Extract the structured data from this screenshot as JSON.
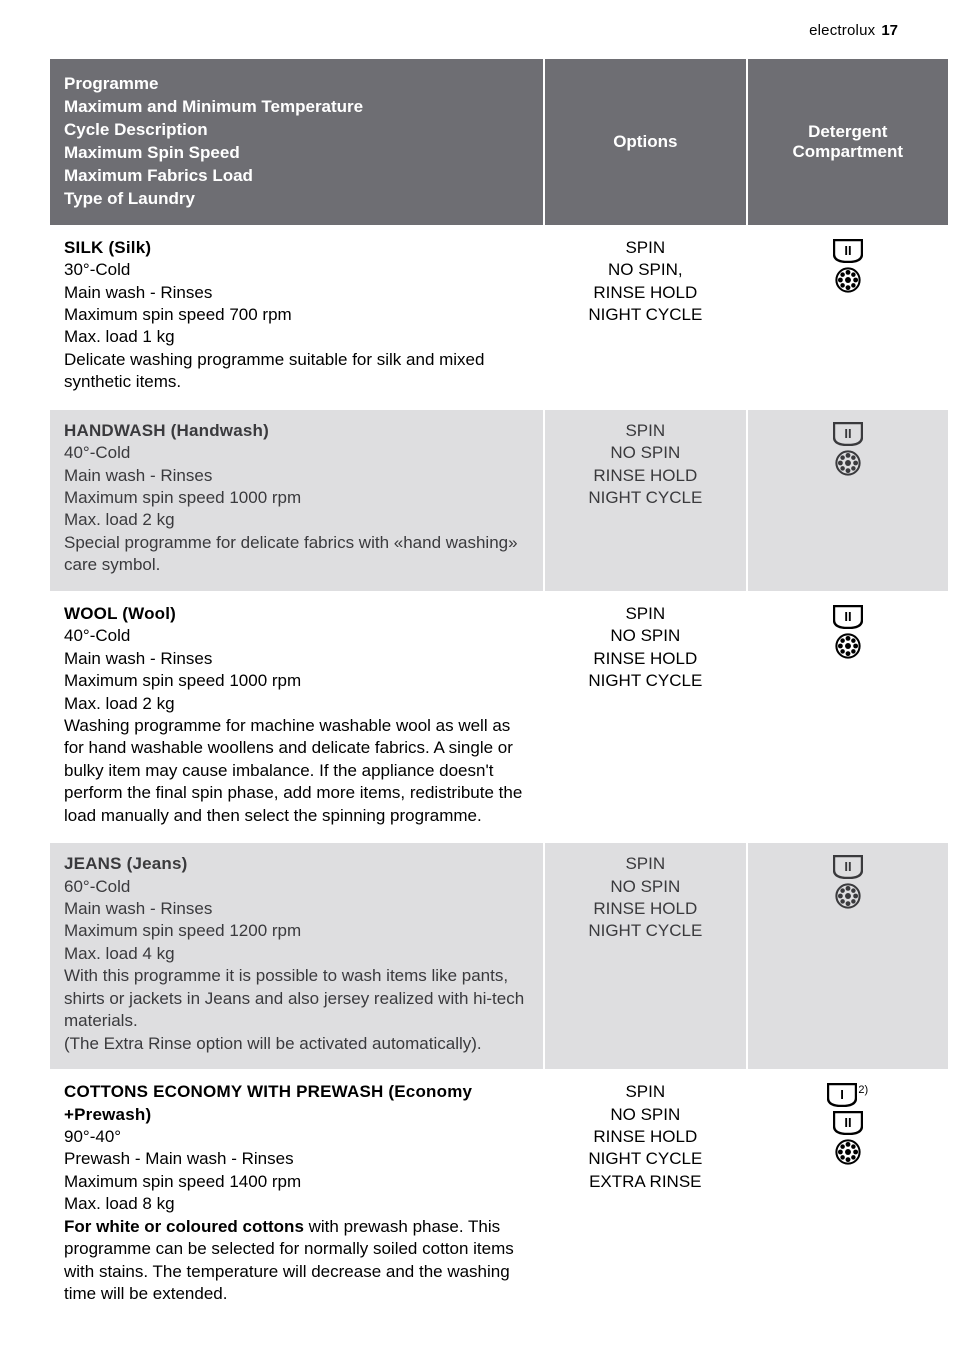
{
  "header": {
    "brand": "electrolux",
    "page_number": "17"
  },
  "colors": {
    "header_bg": "#6e6e73",
    "header_text": "#ffffff",
    "row_grey": "#dedee0",
    "row_white": "#ffffff",
    "text_dark": "#000000",
    "text_grey": "#3a3a3d"
  },
  "columns": {
    "programme_heading_lines": [
      "Programme",
      "Maximum and Minimum Temperature",
      "Cycle Description",
      "Maximum Spin Speed",
      "Maximum Fabrics Load",
      "Type of Laundry"
    ],
    "options_heading": "Options",
    "detergent_heading_l1": "Detergent",
    "detergent_heading_l2": "Compartment"
  },
  "rows": [
    {
      "id": "silk",
      "title": "SILK (Silk)",
      "body": "30°-Cold\nMain wash - Rinses\nMaximum spin speed 700 rpm\nMax. load 1 kg\nDelicate washing programme suitable for silk and mixed synthetic items.",
      "options": [
        "SPIN",
        "NO SPIN,",
        "RINSE HOLD",
        "NIGHT CYCLE"
      ],
      "stripe": "white",
      "icons": [
        "compartment-2",
        "flower"
      ]
    },
    {
      "id": "handwash",
      "title": "HANDWASH (Handwash)",
      "body": "40°-Cold\nMain wash - Rinses\nMaximum spin speed 1000 rpm\nMax. load 2 kg\nSpecial programme for delicate fabrics with «hand washing» care symbol.",
      "options": [
        "SPIN",
        "NO SPIN",
        "RINSE HOLD",
        "NIGHT CYCLE"
      ],
      "stripe": "grey",
      "icons": [
        "compartment-2",
        "flower"
      ]
    },
    {
      "id": "wool",
      "title": "WOOL (Wool)",
      "body": "40°-Cold\nMain wash - Rinses\nMaximum spin speed 1000 rpm\nMax. load 2 kg\nWashing programme for machine washable wool as well as for hand washable woollens and delicate fabrics. A single or bulky item may cause imbalance. If the appliance doesn't perform the final spin phase, add more items, redistribute the load manually and then select the spinning programme.",
      "options": [
        "SPIN",
        "NO SPIN",
        "RINSE HOLD",
        "NIGHT CYCLE"
      ],
      "stripe": "white",
      "icons": [
        "compartment-2",
        "flower"
      ]
    },
    {
      "id": "jeans",
      "title": "JEANS (Jeans)",
      "body": "60°-Cold\nMain wash - Rinses\nMaximum spin speed 1200 rpm\nMax. load 4 kg\nWith this programme it is possible to wash items like pants, shirts or jackets in Jeans and also jersey realized with hi-tech materials.\n(The Extra Rinse option will be activated automatically).",
      "options": [
        "SPIN",
        "NO SPIN",
        "RINSE HOLD",
        "NIGHT CYCLE"
      ],
      "stripe": "grey",
      "icons": [
        "compartment-2",
        "flower"
      ]
    },
    {
      "id": "cottons-economy",
      "title": "COTTONS ECONOMY WITH PREWASH (Economy +Prewash)",
      "body_pre": "90°-40°\nPrewash - Main wash - Rinses\nMaximum spin speed 1400 rpm\nMax. load 8 kg",
      "body_bold": "For white or coloured cottons",
      "body_post": " with prewash phase. This programme can be selected for normally soiled cotton items with stains. The temperature will decrease and the washing time will be extended.",
      "options": [
        "SPIN",
        "NO SPIN",
        "RINSE HOLD",
        "NIGHT CYCLE",
        "EXTRA RINSE"
      ],
      "stripe": "white",
      "icons": [
        "compartment-1-sup2",
        "compartment-2",
        "flower"
      ]
    }
  ],
  "icon_labels": {
    "compartment-1": "I",
    "compartment-2": "II",
    "compartment-1-superscript": "2)"
  }
}
